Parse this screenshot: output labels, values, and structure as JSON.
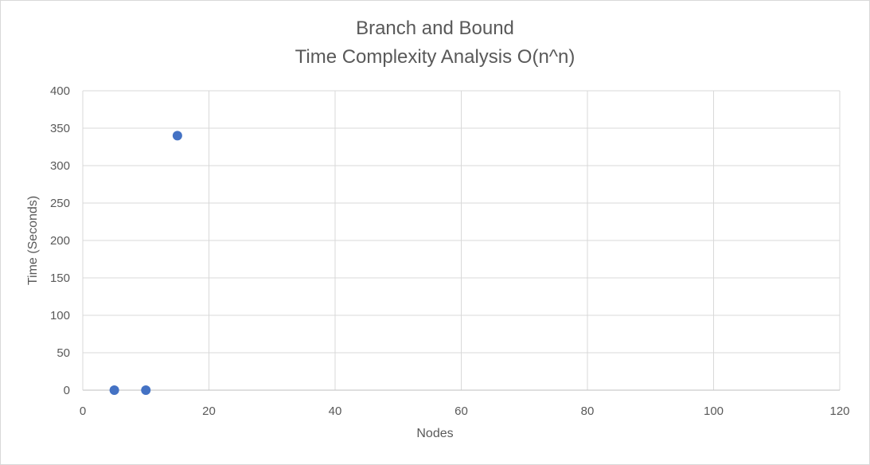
{
  "chart_data": {
    "type": "scatter",
    "title": "Branch and Bound",
    "subtitle": "Time Complexity Analysis O(n^n)",
    "xlabel": "Nodes",
    "ylabel": "Time (Seconds)",
    "xlim": [
      0,
      120
    ],
    "ylim": [
      0,
      400
    ],
    "xticks": [
      0,
      20,
      40,
      60,
      80,
      100,
      120
    ],
    "yticks": [
      0,
      50,
      100,
      150,
      200,
      250,
      300,
      350,
      400
    ],
    "grid": true,
    "legend": "none",
    "series": [
      {
        "color": "#4472c4",
        "points": [
          {
            "x": 5,
            "y": 0
          },
          {
            "x": 10,
            "y": 0
          },
          {
            "x": 15,
            "y": 340
          }
        ]
      }
    ]
  }
}
